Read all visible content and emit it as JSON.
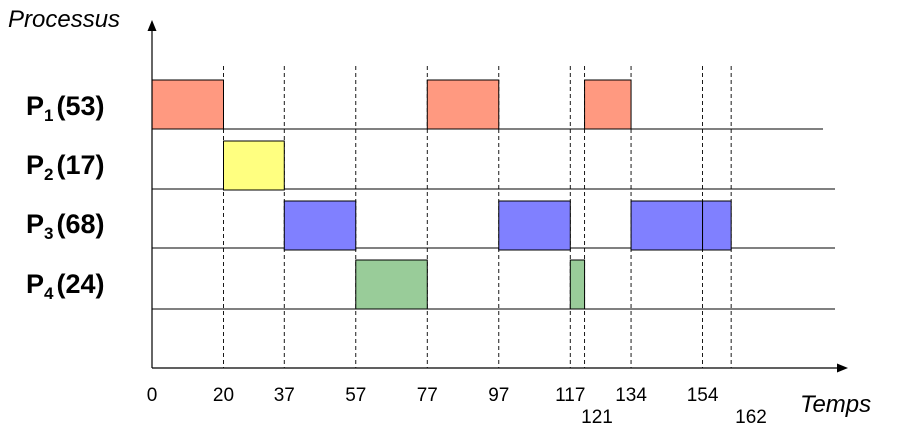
{
  "axes": {
    "y_title": "Processus",
    "x_title": "Temps"
  },
  "processes": [
    {
      "name": "P",
      "index": "1",
      "burst": "(53)",
      "color": "#ff9980"
    },
    {
      "name": "P",
      "index": "2",
      "burst": "(17)",
      "color": "#ffff80"
    },
    {
      "name": "P",
      "index": "3",
      "burst": "(68)",
      "color": "#8080ff"
    },
    {
      "name": "P",
      "index": "4",
      "burst": "(24)",
      "color": "#99cc99"
    }
  ],
  "time_ticks": [
    "0",
    "20",
    "37",
    "57",
    "77",
    "97",
    "117",
    "121",
    "134",
    "154",
    "162"
  ],
  "chart_data": {
    "type": "gantt",
    "x_axis_title": "Temps",
    "y_axis_title": "Processus",
    "categories": [
      "P1 (53)",
      "P2 (17)",
      "P3 (68)",
      "P4 (24)"
    ],
    "tick_values": [
      0,
      20,
      37,
      57,
      77,
      97,
      117,
      121,
      134,
      154,
      162
    ],
    "segments": [
      {
        "process": 0,
        "start": 0,
        "end": 20
      },
      {
        "process": 1,
        "start": 20,
        "end": 37
      },
      {
        "process": 2,
        "start": 37,
        "end": 57
      },
      {
        "process": 3,
        "start": 57,
        "end": 77
      },
      {
        "process": 0,
        "start": 77,
        "end": 97
      },
      {
        "process": 2,
        "start": 97,
        "end": 117
      },
      {
        "process": 3,
        "start": 117,
        "end": 121
      },
      {
        "process": 0,
        "start": 121,
        "end": 134
      },
      {
        "process": 2,
        "start": 134,
        "end": 154
      },
      {
        "process": 2,
        "start": 154,
        "end": 162
      }
    ]
  }
}
